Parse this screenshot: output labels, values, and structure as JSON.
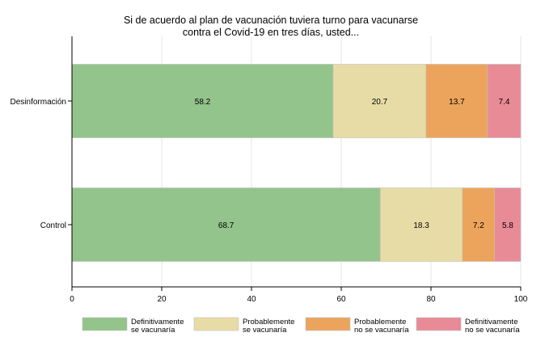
{
  "chart_data": {
    "type": "bar",
    "orientation": "horizontal",
    "stacked": true,
    "title_lines": [
      "Si de acuerdo al plan de vacunación tuviera turno para vacunarse",
      "contra el Covid-19 en tres días, usted..."
    ],
    "categories": [
      "Desinformación",
      "Control"
    ],
    "series": [
      {
        "name_lines": [
          "Definitivamente",
          "se vacunaría"
        ],
        "color": "#93c48b",
        "values": [
          58.2,
          68.7
        ]
      },
      {
        "name_lines": [
          "Probablemente",
          "se vacunaría"
        ],
        "color": "#e8dca6",
        "values": [
          20.7,
          18.3
        ]
      },
      {
        "name_lines": [
          "Probablemente",
          "no se vacunaría"
        ],
        "color": "#eca45c",
        "values": [
          13.7,
          7.2
        ]
      },
      {
        "name_lines": [
          "Definitivamente",
          "no se vacunaría"
        ],
        "color": "#e88b97",
        "values": [
          7.4,
          5.8
        ]
      }
    ],
    "xlim": [
      0,
      100
    ],
    "xticks": [
      0,
      20,
      40,
      60,
      80,
      100
    ],
    "grid": true,
    "legend": "bottom",
    "xlabel": "",
    "ylabel": ""
  }
}
